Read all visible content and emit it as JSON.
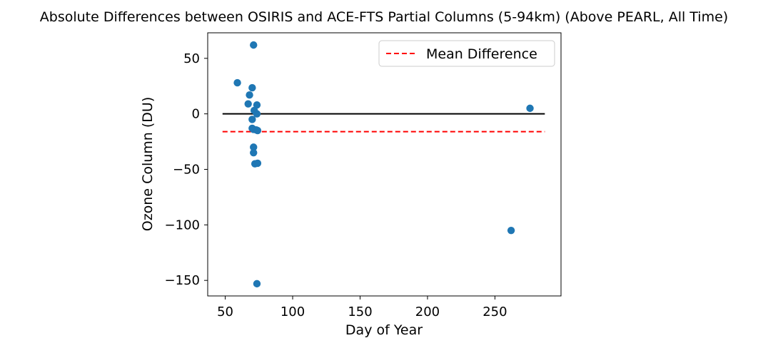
{
  "chart_data": {
    "type": "scatter",
    "title": "Absolute Differences between OSIRIS and ACE-FTS Partial Columns (5-94km) (Above PEARL, All Time)",
    "xlabel": "Day of Year",
    "ylabel": "Ozone Column (DU)",
    "xlim": [
      37,
      299
    ],
    "ylim": [
      -164,
      73
    ],
    "xticks": [
      50,
      100,
      150,
      200,
      250
    ],
    "yticks": [
      50,
      0,
      -50,
      -100,
      -150
    ],
    "xtick_labels": [
      "50",
      "100",
      "150",
      "200",
      "250"
    ],
    "ytick_labels": [
      "50",
      "0",
      "−50",
      "−100",
      "−150"
    ],
    "grid": false,
    "legend": {
      "placement": "top-right",
      "entries": [
        "Mean Difference"
      ]
    },
    "series": [
      {
        "type": "scatter",
        "color": "#1f77b4",
        "points": [
          [
            59,
            28
          ],
          [
            67,
            9
          ],
          [
            68,
            17
          ],
          [
            70,
            23.5
          ],
          [
            70,
            -13
          ],
          [
            70,
            -5
          ],
          [
            71,
            62
          ],
          [
            71,
            -14
          ],
          [
            71,
            -30
          ],
          [
            71,
            -35
          ],
          [
            71.5,
            3
          ],
          [
            72,
            -45
          ],
          [
            73,
            -14.5
          ],
          [
            73.5,
            8
          ],
          [
            73.5,
            0
          ],
          [
            74,
            -15
          ],
          [
            74,
            -44.5
          ],
          [
            73.5,
            -153
          ],
          [
            262,
            -105
          ],
          [
            276,
            5
          ]
        ]
      },
      {
        "type": "line",
        "name": "Mean Difference",
        "color": "#ff0000",
        "style": "dashed",
        "x": [
          48,
          287
        ],
        "y": [
          -16,
          -16
        ]
      },
      {
        "type": "line",
        "color": "#000000",
        "style": "solid",
        "x": [
          48,
          287
        ],
        "y": [
          0,
          0
        ]
      }
    ]
  }
}
